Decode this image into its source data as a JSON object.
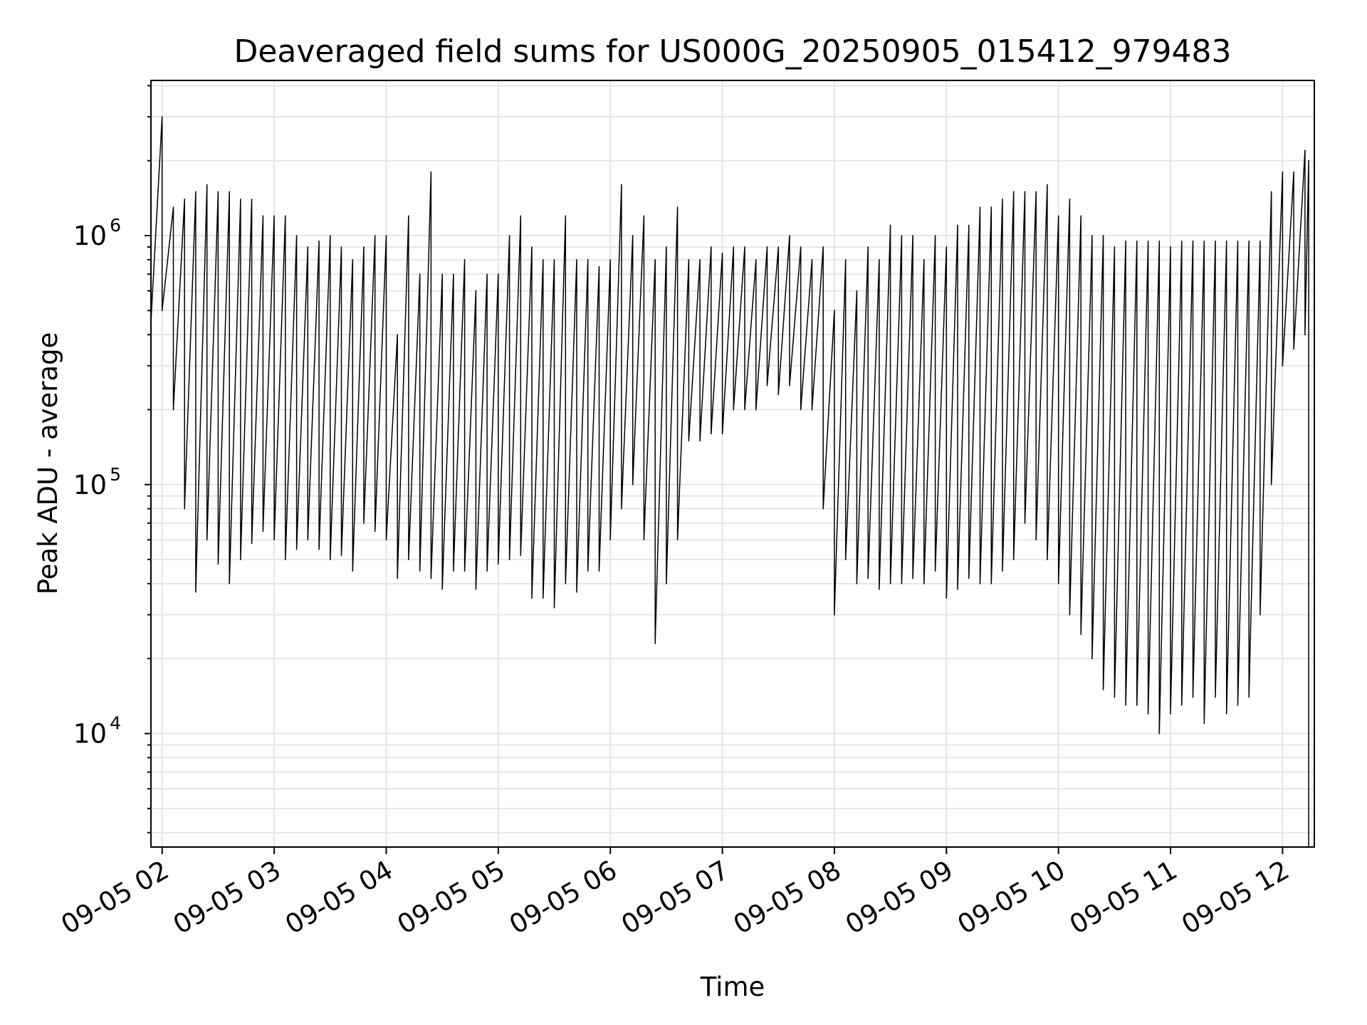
{
  "chart_data": {
    "type": "line",
    "title": "Deaveraged field sums for US000G_20250905_015412_979483",
    "xlabel": "Time",
    "ylabel": "Peak ADU - average",
    "yscale": "log",
    "grid": true,
    "line_color": "#000000",
    "grid_color": "#e6e6e6",
    "x_range": [
      "2025-09-05 01:54",
      "2025-09-05 12:17"
    ],
    "ylim": [
      3500,
      4200000
    ],
    "x_ticks": [
      "09-05 02",
      "09-05 03",
      "09-05 04",
      "09-05 05",
      "09-05 06",
      "09-05 07",
      "09-05 08",
      "09-05 09",
      "09-05 10",
      "09-05 11",
      "09-05 12"
    ],
    "x_tick_times": [
      "2025-09-05 02:00",
      "2025-09-05 03:00",
      "2025-09-05 04:00",
      "2025-09-05 05:00",
      "2025-09-05 06:00",
      "2025-09-05 07:00",
      "2025-09-05 08:00",
      "2025-09-05 09:00",
      "2025-09-05 10:00",
      "2025-09-05 11:00",
      "2025-09-05 12:00"
    ],
    "y_ticks": [
      {
        "value": 10000,
        "base": "10",
        "exp": "4"
      },
      {
        "value": 100000,
        "base": "10",
        "exp": "5"
      },
      {
        "value": 1000000,
        "base": "10",
        "exp": "6"
      }
    ],
    "series": [
      {
        "x": [
          "2025-09-05 01:54",
          "2025-09-05 02:00",
          "2025-09-05 02:06",
          "2025-09-05 02:12",
          "2025-09-05 02:18",
          "2025-09-05 02:24",
          "2025-09-05 02:30",
          "2025-09-05 02:36",
          "2025-09-05 02:42",
          "2025-09-05 02:48",
          "2025-09-05 02:54",
          "2025-09-05 03:00",
          "2025-09-05 03:06",
          "2025-09-05 03:12",
          "2025-09-05 03:18",
          "2025-09-05 03:24",
          "2025-09-05 03:30",
          "2025-09-05 03:36",
          "2025-09-05 03:42",
          "2025-09-05 03:48",
          "2025-09-05 03:54",
          "2025-09-05 04:00",
          "2025-09-05 04:06",
          "2025-09-05 04:12",
          "2025-09-05 04:18",
          "2025-09-05 04:24",
          "2025-09-05 04:30",
          "2025-09-05 04:36",
          "2025-09-05 04:42",
          "2025-09-05 04:48",
          "2025-09-05 04:54",
          "2025-09-05 05:00",
          "2025-09-05 05:06",
          "2025-09-05 05:12",
          "2025-09-05 05:18",
          "2025-09-05 05:24",
          "2025-09-05 05:30",
          "2025-09-05 05:36",
          "2025-09-05 05:42",
          "2025-09-05 05:48",
          "2025-09-05 05:54",
          "2025-09-05 06:00",
          "2025-09-05 06:06",
          "2025-09-05 06:12",
          "2025-09-05 06:18",
          "2025-09-05 06:24",
          "2025-09-05 06:30",
          "2025-09-05 06:36",
          "2025-09-05 06:42",
          "2025-09-05 06:48",
          "2025-09-05 06:54",
          "2025-09-05 07:00",
          "2025-09-05 07:06",
          "2025-09-05 07:12",
          "2025-09-05 07:18",
          "2025-09-05 07:24",
          "2025-09-05 07:30",
          "2025-09-05 07:36",
          "2025-09-05 07:42",
          "2025-09-05 07:48",
          "2025-09-05 07:54",
          "2025-09-05 08:00",
          "2025-09-05 08:06",
          "2025-09-05 08:12",
          "2025-09-05 08:18",
          "2025-09-05 08:24",
          "2025-09-05 08:30",
          "2025-09-05 08:36",
          "2025-09-05 08:42",
          "2025-09-05 08:48",
          "2025-09-05 08:54",
          "2025-09-05 09:00",
          "2025-09-05 09:06",
          "2025-09-05 09:12",
          "2025-09-05 09:18",
          "2025-09-05 09:24",
          "2025-09-05 09:30",
          "2025-09-05 09:36",
          "2025-09-05 09:42",
          "2025-09-05 09:48",
          "2025-09-05 09:54",
          "2025-09-05 10:00",
          "2025-09-05 10:06",
          "2025-09-05 10:12",
          "2025-09-05 10:18",
          "2025-09-05 10:24",
          "2025-09-05 10:30",
          "2025-09-05 10:36",
          "2025-09-05 10:42",
          "2025-09-05 10:48",
          "2025-09-05 10:54",
          "2025-09-05 11:00",
          "2025-09-05 11:06",
          "2025-09-05 11:12",
          "2025-09-05 11:18",
          "2025-09-05 11:24",
          "2025-09-05 11:30",
          "2025-09-05 11:36",
          "2025-09-05 11:42",
          "2025-09-05 11:48",
          "2025-09-05 11:54",
          "2025-09-05 12:00",
          "2025-09-05 12:06",
          "2025-09-05 12:12",
          "2025-09-05 12:14"
        ],
        "max": [
          750000,
          3000000,
          1300000,
          1400000,
          1500000,
          1600000,
          1500000,
          1500000,
          1400000,
          1400000,
          1200000,
          1200000,
          1200000,
          1000000,
          900000,
          950000,
          1000000,
          900000,
          800000,
          900000,
          1000000,
          1000000,
          400000,
          1200000,
          700000,
          1800000,
          700000,
          700000,
          800000,
          600000,
          700000,
          700000,
          1000000,
          1200000,
          900000,
          800000,
          800000,
          1200000,
          800000,
          800000,
          750000,
          800000,
          1600000,
          1000000,
          1200000,
          800000,
          900000,
          1300000,
          800000,
          800000,
          900000,
          850000,
          900000,
          900000,
          800000,
          900000,
          900000,
          1000000,
          900000,
          800000,
          900000,
          500000,
          800000,
          600000,
          900000,
          800000,
          1100000,
          1000000,
          1000000,
          800000,
          1000000,
          900000,
          1100000,
          1100000,
          1300000,
          1300000,
          1400000,
          1500000,
          1500000,
          1500000,
          1600000,
          1200000,
          1400000,
          1200000,
          1000000,
          1000000,
          900000,
          950000,
          950000,
          950000,
          950000,
          900000,
          950000,
          950000,
          950000,
          950000,
          950000,
          950000,
          950000,
          950000,
          1500000,
          1800000,
          1800000,
          2200000,
          2000000
        ],
        "min": [
          450000,
          500000,
          200000,
          80000,
          37000,
          60000,
          48000,
          40000,
          50000,
          58000,
          65000,
          60000,
          50000,
          55000,
          60000,
          55000,
          50000,
          52000,
          45000,
          70000,
          65000,
          60000,
          42000,
          50000,
          45000,
          42000,
          38000,
          45000,
          45000,
          38000,
          45000,
          48000,
          50000,
          52000,
          35000,
          35000,
          32000,
          40000,
          37000,
          45000,
          45000,
          60000,
          80000,
          100000,
          60000,
          23000,
          40000,
          60000,
          150000,
          150000,
          160000,
          160000,
          200000,
          200000,
          200000,
          250000,
          230000,
          250000,
          200000,
          200000,
          80000,
          30000,
          50000,
          40000,
          42000,
          38000,
          40000,
          40000,
          42000,
          40000,
          45000,
          35000,
          38000,
          42000,
          40000,
          40000,
          45000,
          50000,
          70000,
          60000,
          50000,
          40000,
          30000,
          25000,
          20000,
          15000,
          14000,
          13000,
          13000,
          12000,
          10000,
          12000,
          13000,
          14000,
          11000,
          14000,
          12000,
          13000,
          14000,
          30000,
          100000,
          300000,
          350000,
          400000,
          3500
        ]
      }
    ]
  }
}
